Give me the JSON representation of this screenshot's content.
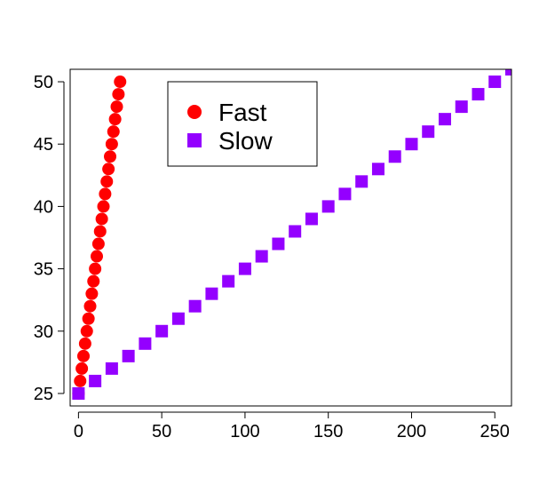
{
  "chart_data": {
    "type": "scatter",
    "title": "",
    "xlabel": "",
    "ylabel": "",
    "xlim": [
      -5,
      260
    ],
    "ylim": [
      24,
      51
    ],
    "x_ticks": [
      0,
      50,
      100,
      150,
      200,
      250
    ],
    "y_ticks": [
      25,
      30,
      35,
      40,
      45,
      50
    ],
    "x_tick_labels": [
      "0",
      "50",
      "100",
      "150",
      "200",
      "250"
    ],
    "y_tick_labels": [
      "25",
      "30",
      "35",
      "40",
      "45",
      "50"
    ],
    "grid": false,
    "legend_position": "top-left",
    "series": [
      {
        "name": "Fast",
        "marker": "circle",
        "color": "#ff0000",
        "x": [
          0,
          1,
          2,
          3,
          4,
          5,
          6,
          7,
          8,
          9,
          10,
          11,
          12,
          13,
          14,
          15,
          16,
          17,
          18,
          19,
          20,
          21,
          22,
          23,
          24,
          25
        ],
        "y": [
          25,
          26,
          27,
          28,
          29,
          30,
          31,
          32,
          33,
          34,
          35,
          36,
          37,
          38,
          39,
          40,
          41,
          42,
          43,
          44,
          45,
          46,
          47,
          48,
          49,
          50
        ]
      },
      {
        "name": "Slow",
        "marker": "square",
        "color": "#9400ff",
        "x": [
          0,
          10,
          20,
          30,
          40,
          50,
          60,
          70,
          80,
          90,
          100,
          110,
          120,
          130,
          140,
          150,
          160,
          170,
          180,
          190,
          200,
          210,
          220,
          230,
          240,
          250,
          260
        ],
        "y": [
          25,
          26,
          27,
          28,
          29,
          30,
          31,
          32,
          33,
          34,
          35,
          36,
          37,
          38,
          39,
          40,
          41,
          42,
          43,
          44,
          45,
          46,
          47,
          48,
          49,
          50,
          51
        ]
      }
    ]
  }
}
